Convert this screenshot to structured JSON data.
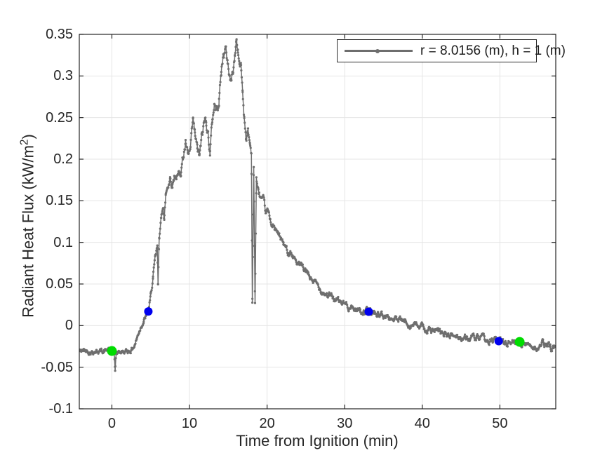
{
  "chart_data": {
    "type": "line",
    "title": "",
    "xlabel": "Time from Ignition (min)",
    "ylabel": "Radiant Heat Flux (kW/m2)",
    "ylabel_parts": {
      "pre": "Radiant Heat Flux (kW/m",
      "sup": "2",
      "post": ")"
    },
    "xlim": [
      -4.2,
      57.2
    ],
    "ylim": [
      -0.1,
      0.35
    ],
    "xticks": [
      0,
      10,
      20,
      30,
      40,
      50
    ],
    "xtick_labels": [
      "0",
      "10",
      "20",
      "30",
      "40",
      "50"
    ],
    "yticks": [
      -0.1,
      -0.05,
      0,
      0.05,
      0.1,
      0.15,
      0.2,
      0.25,
      0.3,
      0.35
    ],
    "ytick_labels": [
      "-0.1",
      "-0.05",
      "0",
      "0.05",
      "0.1",
      "0.15",
      "0.2",
      "0.25",
      "0.3",
      "0.35"
    ],
    "grid": true,
    "legend": {
      "position": "northeast",
      "entries": [
        {
          "label": "r = 8.0156 (m), h = 1 (m)",
          "marker": "line-with-dot"
        }
      ]
    },
    "colors": {
      "curve": "#6e6e6e",
      "grid": "#e5e5e5",
      "axis": "#262626",
      "tick_label": "#262626",
      "background": "#ffffff",
      "legend_border": "#2b2b2b",
      "highlight_blue": "#0000ee",
      "highlight_green": "#00dc00"
    },
    "series": [
      {
        "name": "r = 8.0156 (m), h = 1 (m)",
        "style": "noisy line with dot markers",
        "anchors": [
          [
            -4.3,
            -0.031,
            0.003
          ],
          [
            -3.5,
            -0.03,
            0.003
          ],
          [
            -3.0,
            -0.0305,
            0.003
          ],
          [
            -2.5,
            -0.031,
            0.003
          ],
          [
            -2.0,
            -0.03,
            0.003
          ],
          [
            -1.5,
            -0.0305,
            0.003
          ],
          [
            -1.0,
            -0.03,
            0.003
          ],
          [
            -0.5,
            -0.0295,
            0.003
          ],
          [
            0.0,
            -0.0305,
            0.003
          ],
          [
            0.3,
            -0.033,
            0.003
          ],
          [
            0.42,
            -0.054,
            0.0015
          ],
          [
            0.55,
            -0.034,
            0.003
          ],
          [
            1.0,
            -0.031,
            0.003
          ],
          [
            1.5,
            -0.0315,
            0.003
          ],
          [
            2.0,
            -0.031,
            0.003
          ],
          [
            2.5,
            -0.029,
            0.003
          ],
          [
            2.9,
            -0.024,
            0.003
          ],
          [
            3.2,
            -0.016,
            0.003
          ],
          [
            3.5,
            -0.007,
            0.003
          ],
          [
            3.8,
            0.001,
            0.003
          ],
          [
            4.1,
            0.006,
            0.003
          ],
          [
            4.4,
            0.011,
            0.003
          ],
          [
            4.7,
            0.017,
            0.003
          ],
          [
            5.0,
            0.034,
            0.004
          ],
          [
            5.3,
            0.058,
            0.004
          ],
          [
            5.6,
            0.08,
            0.004
          ],
          [
            5.85,
            0.092,
            0.004
          ],
          [
            5.95,
            0.047,
            0.002
          ],
          [
            6.1,
            0.108,
            0.004
          ],
          [
            6.35,
            0.126,
            0.005
          ],
          [
            6.6,
            0.147,
            0.005
          ],
          [
            6.75,
            0.129,
            0.003
          ],
          [
            6.95,
            0.158,
            0.005
          ],
          [
            7.2,
            0.168,
            0.005
          ],
          [
            7.5,
            0.179,
            0.006
          ],
          [
            7.8,
            0.171,
            0.005
          ],
          [
            8.1,
            0.183,
            0.006
          ],
          [
            8.5,
            0.178,
            0.005
          ],
          [
            8.9,
            0.188,
            0.006
          ],
          [
            9.2,
            0.205,
            0.007
          ],
          [
            9.5,
            0.218,
            0.006
          ],
          [
            9.8,
            0.201,
            0.006
          ],
          [
            10.1,
            0.208,
            0.006
          ],
          [
            10.45,
            0.243,
            0.006
          ],
          [
            10.7,
            0.228,
            0.006
          ],
          [
            11.0,
            0.211,
            0.006
          ],
          [
            11.3,
            0.203,
            0.006
          ],
          [
            11.6,
            0.226,
            0.007
          ],
          [
            11.9,
            0.243,
            0.007
          ],
          [
            12.15,
            0.249,
            0.007
          ],
          [
            12.4,
            0.232,
            0.006
          ],
          [
            12.65,
            0.209,
            0.006
          ],
          [
            12.95,
            0.247,
            0.007
          ],
          [
            13.2,
            0.268,
            0.007
          ],
          [
            13.5,
            0.259,
            0.006
          ],
          [
            13.8,
            0.273,
            0.007
          ],
          [
            14.1,
            0.305,
            0.007
          ],
          [
            14.4,
            0.328,
            0.007
          ],
          [
            14.65,
            0.332,
            0.006
          ],
          [
            14.9,
            0.318,
            0.007
          ],
          [
            15.15,
            0.302,
            0.006
          ],
          [
            15.35,
            0.293,
            0.006
          ],
          [
            15.6,
            0.306,
            0.006
          ],
          [
            15.85,
            0.323,
            0.006
          ],
          [
            16.05,
            0.345,
            0.004
          ],
          [
            16.25,
            0.33,
            0.006
          ],
          [
            16.45,
            0.314,
            0.006
          ],
          [
            16.65,
            0.311,
            0.005
          ],
          [
            16.85,
            0.28,
            0.006
          ],
          [
            17.05,
            0.252,
            0.006
          ],
          [
            17.3,
            0.228,
            0.006
          ],
          [
            17.55,
            0.232,
            0.007
          ],
          [
            17.8,
            0.218,
            0.007
          ],
          [
            17.98,
            0.208,
            0.004
          ],
          [
            18.1,
            0.03,
            0.002
          ],
          [
            18.28,
            0.19,
            0.004
          ],
          [
            18.45,
            0.027,
            0.002
          ],
          [
            18.62,
            0.177,
            0.004
          ],
          [
            18.85,
            0.16,
            0.005
          ],
          [
            19.1,
            0.155,
            0.005
          ],
          [
            19.5,
            0.147,
            0.005
          ],
          [
            19.8,
            0.134,
            0.004
          ],
          [
            20.05,
            0.137,
            0.004
          ],
          [
            20.35,
            0.129,
            0.004
          ],
          [
            20.7,
            0.121,
            0.004
          ],
          [
            21.0,
            0.115,
            0.004
          ],
          [
            21.4,
            0.11,
            0.004
          ],
          [
            21.8,
            0.104,
            0.004
          ],
          [
            22.1,
            0.098,
            0.004
          ],
          [
            22.45,
            0.092,
            0.004
          ],
          [
            22.7,
            0.088,
            0.004
          ],
          [
            23.0,
            0.091,
            0.004
          ],
          [
            23.3,
            0.084,
            0.004
          ],
          [
            23.7,
            0.078,
            0.004
          ],
          [
            24.1,
            0.073,
            0.004
          ],
          [
            24.5,
            0.069,
            0.004
          ],
          [
            25.0,
            0.064,
            0.004
          ],
          [
            25.5,
            0.058,
            0.004
          ],
          [
            26.0,
            0.053,
            0.004
          ],
          [
            26.5,
            0.048,
            0.004
          ],
          [
            27.0,
            0.0435,
            0.004
          ],
          [
            27.5,
            0.0395,
            0.004
          ],
          [
            28.0,
            0.036,
            0.004
          ],
          [
            28.5,
            0.033,
            0.004
          ],
          [
            29.0,
            0.03,
            0.004
          ],
          [
            29.5,
            0.0275,
            0.004
          ],
          [
            30.0,
            0.0255,
            0.004
          ],
          [
            30.5,
            0.0235,
            0.004
          ],
          [
            31.0,
            0.0215,
            0.004
          ],
          [
            31.5,
            0.02,
            0.004
          ],
          [
            32.0,
            0.0185,
            0.004
          ],
          [
            32.5,
            0.0178,
            0.004
          ],
          [
            33.1,
            0.0167,
            0.004
          ],
          [
            33.7,
            0.0155,
            0.004
          ],
          [
            34.3,
            0.014,
            0.004
          ],
          [
            35.0,
            0.0115,
            0.004
          ],
          [
            35.7,
            0.0095,
            0.004
          ],
          [
            36.4,
            0.0075,
            0.004
          ],
          [
            37.1,
            0.0055,
            0.004
          ],
          [
            37.8,
            0.004,
            0.004
          ],
          [
            38.5,
            0.002,
            0.004
          ],
          [
            39.2,
            0.0,
            0.004
          ],
          [
            40.0,
            -0.0025,
            0.004
          ],
          [
            40.8,
            -0.005,
            0.004
          ],
          [
            41.6,
            -0.0075,
            0.004
          ],
          [
            42.4,
            -0.0095,
            0.004
          ],
          [
            43.2,
            -0.011,
            0.004
          ],
          [
            44.0,
            -0.0125,
            0.004
          ],
          [
            45.0,
            -0.014,
            0.004
          ],
          [
            46.0,
            -0.0152,
            0.004
          ],
          [
            47.0,
            -0.0163,
            0.004
          ],
          [
            48.0,
            -0.0172,
            0.004
          ],
          [
            49.0,
            -0.018,
            0.004
          ],
          [
            49.8,
            -0.0185,
            0.004
          ],
          [
            50.6,
            -0.019,
            0.004
          ],
          [
            51.4,
            -0.0193,
            0.004
          ],
          [
            52.1,
            -0.0196,
            0.004
          ],
          [
            52.8,
            -0.0205,
            0.004
          ],
          [
            53.4,
            -0.024,
            0.004
          ],
          [
            53.9,
            -0.021,
            0.004
          ],
          [
            54.5,
            -0.0255,
            0.004
          ],
          [
            55.0,
            -0.027,
            0.004
          ],
          [
            55.5,
            -0.022,
            0.004
          ],
          [
            56.0,
            -0.0245,
            0.005
          ],
          [
            56.5,
            -0.0265,
            0.005
          ],
          [
            57.25,
            -0.025,
            0.004
          ]
        ]
      }
    ],
    "highlight_points": [
      {
        "x": 0.0,
        "y": -0.0305,
        "color_key": "highlight_green",
        "diameter": 14
      },
      {
        "x": 4.7,
        "y": 0.017,
        "color_key": "highlight_blue",
        "diameter": 12
      },
      {
        "x": 33.1,
        "y": 0.0167,
        "color_key": "highlight_blue",
        "diameter": 12
      },
      {
        "x": 49.85,
        "y": -0.0187,
        "color_key": "highlight_blue",
        "diameter": 12
      },
      {
        "x": 52.55,
        "y": -0.0196,
        "color_key": "highlight_green",
        "diameter": 14
      }
    ]
  }
}
